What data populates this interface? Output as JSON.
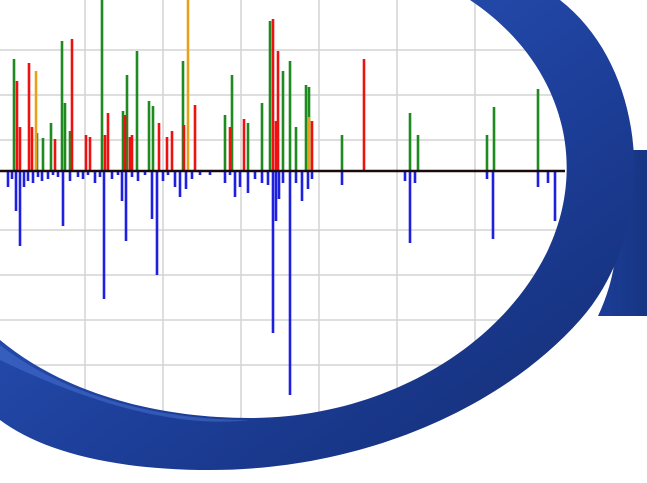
{
  "colors": {
    "frame_blue": "#1d3f9a",
    "frame_blue_light": "#2f5cc4",
    "frame_blue_dark": "#132b70",
    "grid": "#d4d4d4",
    "baseline": "#1a0a0a",
    "positive_green": "#1f8a1f",
    "positive_red": "#ee1111",
    "positive_orange": "#e8a21a",
    "negative_blue": "#1f1fe0"
  },
  "chart_data": {
    "type": "bar",
    "title": "",
    "xlabel": "",
    "ylabel": "",
    "grid": true,
    "legend": "none",
    "xlim": [
      0,
      560
    ],
    "ylim": [
      -230,
      175
    ],
    "series": [
      {
        "color_key": "positive_green",
        "x": [
          14,
          37,
          43,
          51,
          62,
          65,
          70,
          102,
          123,
          127,
          137,
          149,
          153,
          183,
          225,
          232,
          248,
          262,
          270,
          283,
          290,
          296,
          306,
          309,
          342,
          410,
          418,
          487,
          494,
          538
        ],
        "values": [
          112,
          38,
          33,
          48,
          130,
          68,
          40,
          172,
          60,
          96,
          120,
          70,
          65,
          110,
          56,
          96,
          48,
          68,
          150,
          100,
          110,
          44,
          86,
          84,
          36,
          58,
          36,
          36,
          64,
          82
        ]
      },
      {
        "color_key": "positive_red",
        "x": [
          17,
          20,
          29,
          32,
          55,
          72,
          86,
          90,
          105,
          108,
          125,
          130,
          132,
          159,
          167,
          172,
          184,
          195,
          230,
          244,
          273,
          276,
          278,
          312,
          364
        ],
        "values": [
          90,
          44,
          108,
          44,
          32,
          132,
          36,
          34,
          36,
          58,
          56,
          34,
          36,
          48,
          34,
          40,
          46,
          66,
          44,
          52,
          152,
          50,
          120,
          50,
          112
        ]
      },
      {
        "color_key": "positive_orange",
        "x": [
          36,
          188,
          309
        ],
        "values": [
          100,
          172,
          54
        ]
      },
      {
        "color_key": "negative_blue",
        "x": [
          8,
          12,
          16,
          20,
          24,
          28,
          33,
          38,
          42,
          48,
          53,
          58,
          63,
          70,
          78,
          83,
          88,
          95,
          100,
          104,
          112,
          118,
          122,
          126,
          132,
          138,
          145,
          152,
          157,
          163,
          168,
          175,
          180,
          186,
          192,
          200,
          210,
          225,
          230,
          235,
          240,
          248,
          255,
          262,
          268,
          273,
          276,
          279,
          283,
          290,
          296,
          302,
          308,
          312,
          342,
          405,
          410,
          415,
          487,
          493,
          538,
          548,
          555
        ],
        "values": [
          -16,
          -8,
          -40,
          -75,
          -16,
          -10,
          -12,
          -6,
          -10,
          -8,
          -4,
          -6,
          -55,
          -10,
          -6,
          -8,
          -4,
          -12,
          -6,
          -128,
          -8,
          -4,
          -30,
          -70,
          -6,
          -10,
          -4,
          -48,
          -104,
          -10,
          -4,
          -16,
          -26,
          -18,
          -8,
          -4,
          -4,
          -12,
          -4,
          -26,
          -16,
          -22,
          -8,
          -12,
          -14,
          -162,
          -50,
          -28,
          -12,
          -224,
          -12,
          -30,
          -18,
          -8,
          -14,
          -10,
          -72,
          -12,
          -8,
          -68,
          -16,
          -12,
          -50
        ]
      }
    ]
  }
}
